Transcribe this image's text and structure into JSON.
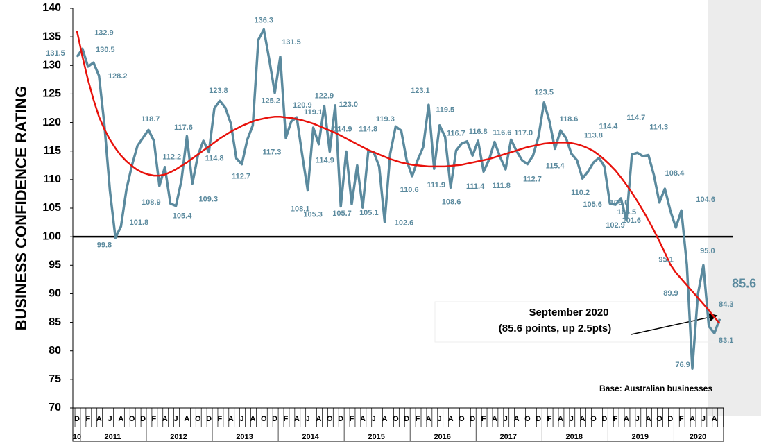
{
  "chart_data": {
    "type": "line",
    "y_label": "BUSINESS CONFIDENCE RATING",
    "ylim": [
      70,
      140
    ],
    "yticks": [
      70,
      75,
      80,
      85,
      90,
      95,
      100,
      105,
      110,
      115,
      120,
      125,
      130,
      135,
      140
    ],
    "categories": [
      "D",
      null,
      "F",
      null,
      "A",
      null,
      "J",
      null,
      "A",
      null,
      "O",
      null,
      "D",
      null,
      "F",
      null,
      "A",
      null,
      "J",
      null,
      "A",
      null,
      "O",
      null,
      "D",
      null,
      "F",
      null,
      "A",
      null,
      "J",
      null,
      "A",
      null,
      "O",
      null,
      "D",
      null,
      "F",
      null,
      "A",
      null,
      "J",
      null,
      "A",
      null,
      "O",
      null,
      "D",
      null,
      "F",
      null,
      "A",
      null,
      "J",
      null,
      "A",
      null,
      "O",
      null,
      "D",
      null,
      "F",
      null,
      "A",
      null,
      "J",
      null,
      "A",
      null,
      "O",
      null,
      "D",
      null,
      "F",
      null,
      "A",
      null,
      "J",
      null,
      "A",
      null,
      "O",
      null,
      "D",
      null,
      "F",
      null,
      "A",
      null,
      "J",
      null,
      "A",
      null,
      "O",
      null,
      "D",
      null,
      "F",
      null,
      "A",
      null,
      "J",
      null,
      "A",
      null,
      "O",
      null,
      "D",
      null,
      "F",
      null,
      "A",
      null,
      "J",
      null,
      "A",
      null
    ],
    "year_labels": [
      "10",
      "2011",
      "2012",
      "2013",
      "2014",
      "2015",
      "2016",
      "2017",
      "2018",
      "2019",
      "2020"
    ],
    "color": "#5b8a9e",
    "values": [
      131.5,
      132.9,
      129.8,
      130.5,
      128.2,
      119.5,
      108.0,
      99.8,
      101.8,
      108.3,
      112.5,
      115.9,
      117.3,
      118.7,
      116.8,
      108.9,
      112.2,
      105.8,
      105.4,
      109.8,
      117.6,
      109.3,
      114.2,
      116.8,
      114.8,
      122.5,
      123.8,
      122.6,
      119.8,
      113.7,
      112.7,
      117.0,
      119.5,
      134.5,
      136.3,
      131.0,
      125.2,
      131.5,
      117.3,
      120.2,
      120.9,
      114.3,
      108.1,
      119.1,
      116.2,
      122.9,
      114.9,
      123.0,
      105.3,
      114.9,
      105.7,
      112.5,
      105.1,
      114.9,
      114.8,
      112.3,
      102.6,
      114.5,
      119.3,
      118.6,
      113.4,
      110.6,
      113.4,
      115.7,
      123.1,
      111.9,
      119.5,
      117.5,
      108.6,
      115.1,
      116.3,
      116.7,
      114.2,
      116.8,
      111.4,
      113.5,
      116.6,
      114.0,
      111.8,
      117.0,
      115.0,
      113.4,
      112.7,
      114.2,
      117.5,
      123.5,
      120.2,
      115.4,
      118.6,
      117.3,
      114.5,
      113.4,
      110.2,
      111.4,
      113.0,
      113.8,
      112.3,
      105.8,
      105.6,
      106.7,
      102.9,
      114.4,
      114.7,
      114.1,
      114.3,
      110.8,
      106.0,
      108.4,
      104.5,
      101.6,
      104.6,
      95.1,
      76.9,
      89.9,
      95.0,
      84.3,
      83.1,
      85.6
    ],
    "value_labels": [
      "131.5",
      "132.9",
      null,
      "130.5",
      "128.2",
      null,
      null,
      "99.8",
      "101.8",
      null,
      null,
      null,
      null,
      "118.7",
      null,
      "108.9",
      "112.2",
      null,
      "105.4",
      null,
      "117.6",
      "109.3",
      null,
      null,
      "114.8",
      null,
      "123.8",
      null,
      null,
      null,
      "112.7",
      null,
      null,
      null,
      "136.3",
      null,
      "125.2",
      "131.5",
      "117.3",
      null,
      "120.9",
      null,
      "108.1",
      "119.1",
      null,
      "122.9",
      "114.9",
      "123.0",
      "105.3",
      "114.9",
      "105.7",
      null,
      "105.1",
      null,
      "114.8",
      null,
      "102.6",
      null,
      "119.3",
      null,
      null,
      "110.6",
      null,
      null,
      "123.1",
      "111.9",
      "119.5",
      null,
      "108.6",
      null,
      null,
      "116.7",
      null,
      "116.8",
      "111.4",
      null,
      "116.6",
      null,
      "111.8",
      "117.0",
      null,
      null,
      "112.7",
      null,
      null,
      "123.5",
      null,
      "115.4",
      "118.6",
      null,
      null,
      null,
      "110.2",
      null,
      null,
      "113.8",
      null,
      null,
      "105.6",
      null,
      "102.9",
      "114.4",
      "114.7",
      null,
      "114.3",
      null,
      "106.0",
      "108.4",
      "104.5",
      "101.6",
      "104.6",
      "95.1",
      "76.9",
      "89.9",
      "95.0",
      "84.3",
      "83.1",
      "85.6"
    ],
    "trend": {
      "color": "#e8120c",
      "values": [
        136.0,
        131.5,
        127.5,
        124.0,
        121.0,
        118.8,
        117.0,
        115.5,
        114.2,
        113.2,
        112.4,
        111.7,
        111.2,
        110.9,
        110.7,
        110.7,
        110.9,
        111.3,
        111.8,
        112.4,
        113.0,
        113.7,
        114.4,
        115.1,
        115.8,
        116.5,
        117.2,
        117.8,
        118.4,
        118.9,
        119.4,
        119.8,
        120.2,
        120.5,
        120.7,
        120.9,
        121.0,
        121.0,
        120.9,
        120.8,
        120.6,
        120.4,
        120.1,
        119.8,
        119.4,
        119.0,
        118.6,
        118.2,
        117.7,
        117.2,
        116.7,
        116.2,
        115.7,
        115.2,
        114.8,
        114.4,
        114.0,
        113.6,
        113.3,
        113.0,
        112.8,
        112.6,
        112.5,
        112.4,
        112.3,
        112.3,
        112.3,
        112.3,
        112.4,
        112.5,
        112.6,
        112.8,
        113.0,
        113.2,
        113.4,
        113.6,
        113.9,
        114.2,
        114.5,
        114.8,
        115.1,
        115.4,
        115.7,
        115.9,
        116.1,
        116.3,
        116.4,
        116.5,
        116.5,
        116.5,
        116.4,
        116.2,
        115.9,
        115.5,
        115.0,
        114.3,
        113.5,
        112.6,
        111.6,
        110.4,
        109.1,
        107.7,
        106.2,
        104.6,
        102.9,
        101.1,
        99.2,
        97.2,
        95.1,
        93.7,
        92.6,
        91.5,
        90.4,
        89.3,
        88.2,
        87.1,
        85.9,
        84.8
      ]
    },
    "reference_line": {
      "value": 100,
      "color": "#000000"
    },
    "annotation": [
      "September 2020",
      "(85.6 points, up 2.5pts)"
    ],
    "note": "Base: Australian businesses"
  }
}
